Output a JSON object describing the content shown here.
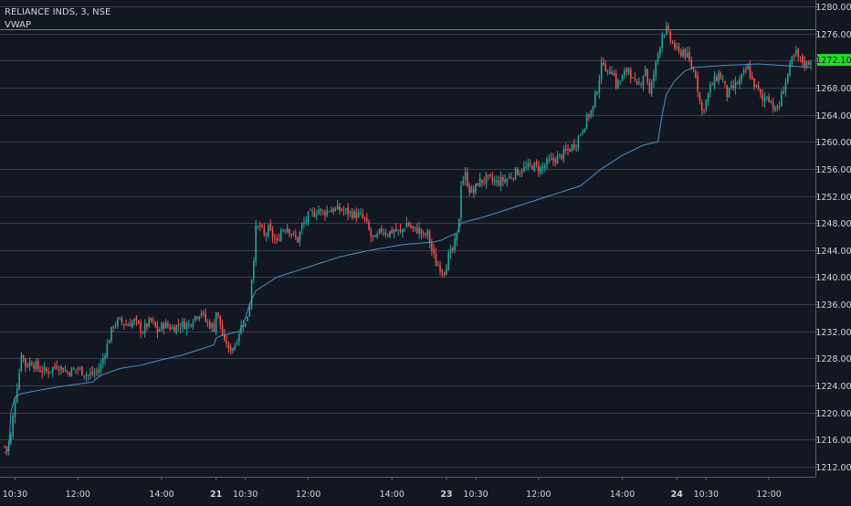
{
  "chart_data": {
    "type": "candlestick",
    "symbol_line": "RELIANCE INDS, 3, NSE",
    "indicator": "VWAP",
    "ylim": [
      1210,
      1282
    ],
    "yticks": [
      "1212.00",
      "1216.00",
      "1220.00",
      "1224.00",
      "1228.00",
      "1232.00",
      "1236.00",
      "1240.00",
      "1244.00",
      "1248.00",
      "1252.00",
      "1256.00",
      "1260.00",
      "1264.00",
      "1268.00",
      "1272.00",
      "1276.00",
      "1280.00"
    ],
    "ytick_values": [
      1212,
      1216,
      1220,
      1224,
      1228,
      1232,
      1236,
      1240,
      1244,
      1248,
      1252,
      1256,
      1260,
      1264,
      1268,
      1272,
      1276,
      1280
    ],
    "xticks": [
      {
        "label": "10:30",
        "bar": 5,
        "bold": false
      },
      {
        "label": "12:00",
        "bar": 35,
        "bold": false
      },
      {
        "label": "14:00",
        "bar": 75,
        "bold": false
      },
      {
        "label": "21",
        "bar": 101,
        "bold": true
      },
      {
        "label": "10:30",
        "bar": 115,
        "bold": false
      },
      {
        "label": "12:00",
        "bar": 145,
        "bold": false
      },
      {
        "label": "14:00",
        "bar": 185,
        "bold": false
      },
      {
        "label": "23",
        "bar": 211,
        "bold": true
      },
      {
        "label": "10:30",
        "bar": 225,
        "bold": false
      },
      {
        "label": "12:00",
        "bar": 255,
        "bold": false
      },
      {
        "label": "14:00",
        "bar": 295,
        "bold": false
      },
      {
        "label": "24",
        "bar": 321,
        "bold": true
      },
      {
        "label": "10:30",
        "bar": 335,
        "bold": false
      },
      {
        "label": "12:00",
        "bar": 365,
        "bold": false
      }
    ],
    "last_price": "1272.10",
    "last_price_value": 1272.1,
    "reference_level": 1276.6,
    "colors": {
      "background": "#131722",
      "grid": "#363c4e",
      "up": "#26a69a",
      "down": "#ef5350",
      "vwap": "#4a90c8",
      "reference": "#22ab3c",
      "last_price_bg": "#22dd22",
      "axis_text": "#d1d4dc"
    },
    "close_keypoints": [
      [
        0,
        1215
      ],
      [
        1,
        1214.5
      ],
      [
        3,
        1216.5
      ],
      [
        5,
        1222
      ],
      [
        7,
        1226
      ],
      [
        8,
        1229
      ],
      [
        10,
        1227
      ],
      [
        13,
        1227.5
      ],
      [
        16,
        1226.5
      ],
      [
        20,
        1226
      ],
      [
        25,
        1227
      ],
      [
        30,
        1226
      ],
      [
        35,
        1226.5
      ],
      [
        40,
        1225.5
      ],
      [
        44,
        1226
      ],
      [
        46,
        1227
      ],
      [
        48,
        1229
      ],
      [
        50,
        1231
      ],
      [
        52,
        1233
      ],
      [
        55,
        1233.5
      ],
      [
        58,
        1233
      ],
      [
        62,
        1233.5
      ],
      [
        66,
        1232
      ],
      [
        68,
        1233
      ],
      [
        70,
        1233.5
      ],
      [
        73,
        1232
      ],
      [
        76,
        1233
      ],
      [
        80,
        1232.5
      ],
      [
        84,
        1233
      ],
      [
        88,
        1233
      ],
      [
        90,
        1234
      ],
      [
        92,
        1234.5
      ],
      [
        94,
        1235
      ],
      [
        96,
        1233.5
      ],
      [
        98,
        1233
      ],
      [
        100,
        1232.5
      ],
      [
        101,
        1235
      ],
      [
        103,
        1233
      ],
      [
        105,
        1230
      ],
      [
        106,
        1230.5
      ],
      [
        107,
        1229
      ],
      [
        108,
        1229.5
      ],
      [
        110,
        1230
      ],
      [
        112,
        1232
      ],
      [
        114,
        1233.5
      ],
      [
        115,
        1233
      ],
      [
        117,
        1236
      ],
      [
        118,
        1240
      ],
      [
        119,
        1243
      ],
      [
        120,
        1247
      ],
      [
        122,
        1247.5
      ],
      [
        124,
        1246
      ],
      [
        126,
        1247
      ],
      [
        128,
        1246
      ],
      [
        130,
        1245
      ],
      [
        132,
        1247
      ],
      [
        135,
        1247.5
      ],
      [
        138,
        1246
      ],
      [
        140,
        1245.5
      ],
      [
        142,
        1247.5
      ],
      [
        145,
        1249
      ],
      [
        148,
        1249.5
      ],
      [
        150,
        1250
      ],
      [
        152,
        1249.5
      ],
      [
        155,
        1250
      ],
      [
        160,
        1250
      ],
      [
        165,
        1249.5
      ],
      [
        170,
        1249
      ],
      [
        172,
        1248.5
      ],
      [
        175,
        1246
      ],
      [
        177,
        1245.5
      ],
      [
        180,
        1247
      ],
      [
        183,
        1246.5
      ],
      [
        186,
        1247
      ],
      [
        189,
        1246.5
      ],
      [
        192,
        1248
      ],
      [
        195,
        1247
      ],
      [
        198,
        1247
      ],
      [
        200,
        1246
      ],
      [
        202,
        1246.5
      ],
      [
        204,
        1244
      ],
      [
        206,
        1242
      ],
      [
        208,
        1241.5
      ],
      [
        210,
        1241
      ],
      [
        212,
        1243
      ],
      [
        214,
        1244
      ],
      [
        216,
        1246
      ],
      [
        217,
        1249
      ],
      [
        218,
        1254
      ],
      [
        220,
        1255
      ],
      [
        222,
        1253
      ],
      [
        224,
        1252.5
      ],
      [
        226,
        1254
      ],
      [
        230,
        1254.5
      ],
      [
        235,
        1254
      ],
      [
        240,
        1254.5
      ],
      [
        244,
        1255.5
      ],
      [
        248,
        1256
      ],
      [
        252,
        1256.5
      ],
      [
        256,
        1256
      ],
      [
        260,
        1257
      ],
      [
        263,
        1257.5
      ],
      [
        266,
        1258
      ],
      [
        270,
        1259
      ],
      [
        273,
        1260
      ],
      [
        276,
        1262
      ],
      [
        279,
        1264
      ],
      [
        281,
        1265
      ],
      [
        283,
        1268
      ],
      [
        285,
        1271
      ],
      [
        286,
        1272
      ],
      [
        288,
        1270
      ],
      [
        290,
        1271
      ],
      [
        292,
        1268.5
      ],
      [
        294,
        1269
      ],
      [
        296,
        1270
      ],
      [
        298,
        1271
      ],
      [
        300,
        1269
      ],
      [
        302,
        1268
      ],
      [
        304,
        1269
      ],
      [
        306,
        1271
      ],
      [
        308,
        1267
      ],
      [
        310,
        1270
      ],
      [
        312,
        1273
      ],
      [
        314,
        1276
      ],
      [
        316,
        1276.5
      ],
      [
        318,
        1275
      ],
      [
        320,
        1274
      ],
      [
        322,
        1273
      ],
      [
        324,
        1273.5
      ],
      [
        326,
        1272.5
      ],
      [
        328,
        1271
      ],
      [
        330,
        1270
      ],
      [
        332,
        1266
      ],
      [
        333,
        1264.5
      ],
      [
        335,
        1266
      ],
      [
        337,
        1268
      ],
      [
        339,
        1269
      ],
      [
        341,
        1270
      ],
      [
        343,
        1269
      ],
      [
        345,
        1267
      ],
      [
        348,
        1268
      ],
      [
        351,
        1269
      ],
      [
        353,
        1270
      ],
      [
        355,
        1271
      ],
      [
        357,
        1269
      ],
      [
        360,
        1267.5
      ],
      [
        362,
        1266
      ],
      [
        364,
        1267
      ],
      [
        366,
        1266
      ],
      [
        368,
        1264.5
      ],
      [
        370,
        1265.5
      ],
      [
        372,
        1268
      ],
      [
        374,
        1270
      ],
      [
        376,
        1272
      ],
      [
        378,
        1273
      ],
      [
        380,
        1272
      ],
      [
        383,
        1271.5
      ],
      [
        385,
        1272.1
      ]
    ],
    "vwap_keypoints": [
      [
        0,
        1214
      ],
      [
        2,
        1214.5
      ],
      [
        3,
        1220
      ],
      [
        5,
        1222.3
      ],
      [
        8,
        1222.8
      ],
      [
        20,
        1223.5
      ],
      [
        30,
        1224
      ],
      [
        42,
        1224.5
      ],
      [
        46,
        1225.5
      ],
      [
        55,
        1226.5
      ],
      [
        65,
        1227
      ],
      [
        75,
        1227.8
      ],
      [
        85,
        1228.5
      ],
      [
        95,
        1229.5
      ],
      [
        100,
        1230
      ],
      [
        101,
        1231
      ],
      [
        103,
        1231.3
      ],
      [
        112,
        1232
      ],
      [
        114,
        1233
      ],
      [
        117,
        1236
      ],
      [
        120,
        1238
      ],
      [
        130,
        1240
      ],
      [
        145,
        1241.5
      ],
      [
        160,
        1243
      ],
      [
        175,
        1244
      ],
      [
        190,
        1244.8
      ],
      [
        205,
        1245.2
      ],
      [
        209,
        1245.5
      ],
      [
        212,
        1246
      ],
      [
        216,
        1246.5
      ],
      [
        218,
        1248
      ],
      [
        230,
        1249
      ],
      [
        245,
        1250.5
      ],
      [
        255,
        1251.5
      ],
      [
        265,
        1252.5
      ],
      [
        275,
        1253.5
      ],
      [
        285,
        1256
      ],
      [
        295,
        1258
      ],
      [
        305,
        1259.5
      ],
      [
        312,
        1260
      ],
      [
        314,
        1264
      ],
      [
        316,
        1267
      ],
      [
        320,
        1269
      ],
      [
        325,
        1270.5
      ],
      [
        330,
        1271
      ],
      [
        345,
        1271.3
      ],
      [
        360,
        1271.5
      ],
      [
        375,
        1271.2
      ],
      [
        385,
        1271
      ]
    ]
  }
}
